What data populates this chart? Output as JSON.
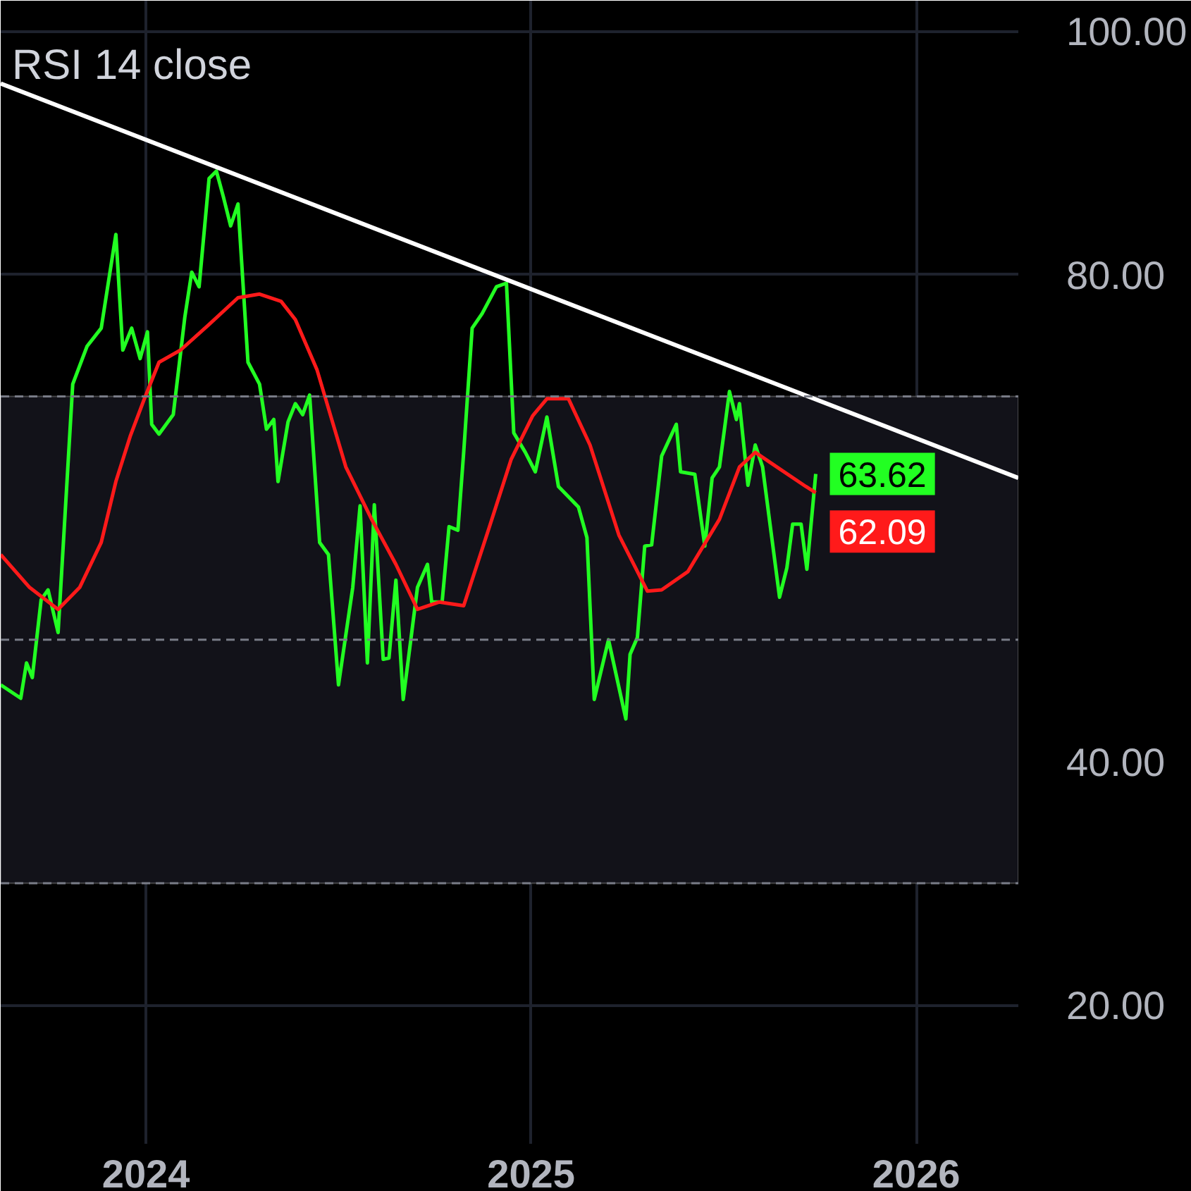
{
  "chart_data": {
    "type": "line",
    "title": "RSI 14 close",
    "xlim": [
      2023.623,
      2026.265
    ],
    "xticks": [
      2024,
      2025,
      2026
    ],
    "ylim": [
      8.6,
      102.5
    ],
    "yticks": [
      {
        "value": 20,
        "label": "20.00"
      },
      {
        "value": 40,
        "label": "40.00"
      },
      {
        "value": 60,
        "label": null
      },
      {
        "value": 80,
        "label": "80.00"
      },
      {
        "value": 100,
        "label": "100.00"
      }
    ],
    "grid": true,
    "bands": [
      {
        "axis": "y",
        "from": 30,
        "to": 70,
        "color": "#121219"
      }
    ],
    "ref_lines": [
      {
        "axis": "y",
        "value": 70,
        "color": "#787b86",
        "line_style": "dashed"
      },
      {
        "axis": "y",
        "value": 50,
        "color": "#787b86",
        "line_style": "dashed"
      },
      {
        "axis": "y",
        "value": 30,
        "color": "#787b86",
        "line_style": "dashed"
      }
    ],
    "series": [
      {
        "type": "line",
        "color": "#22ff22",
        "x": [
          2023.623,
          2023.675,
          2023.69,
          2023.705,
          2023.728,
          2023.746,
          2023.772,
          2023.81,
          2023.847,
          2023.884,
          2023.922,
          2023.94,
          2023.963,
          2023.985,
          2024.004,
          2024.015,
          2024.034,
          2024.071,
          2024.101,
          2024.119,
          2024.138,
          2024.164,
          2024.183,
          2024.201,
          2024.22,
          2024.239,
          2024.265,
          2024.295,
          2024.313,
          2024.332,
          2024.343,
          2024.369,
          2024.388,
          2024.407,
          2024.425,
          2024.451,
          2024.474,
          2024.5,
          2024.537,
          2024.556,
          2024.575,
          2024.593,
          2024.616,
          2024.631,
          2024.649,
          2024.668,
          2024.705,
          2024.731,
          2024.742,
          2024.769,
          2024.787,
          2024.81,
          2024.825,
          2024.847,
          2024.873,
          2024.91,
          2024.936,
          2024.955,
          2024.985,
          2025.011,
          2025.041,
          2025.071,
          2025.123,
          2025.145,
          2025.164,
          2025.201,
          2025.246,
          2025.257,
          2025.276,
          2025.295,
          2025.313,
          2025.339,
          2025.377,
          2025.388,
          2025.425,
          2025.451,
          2025.47,
          2025.489,
          2025.515,
          2025.533,
          2025.541,
          2025.563,
          2025.582,
          2025.601,
          2025.645,
          2025.664,
          2025.679,
          2025.701,
          2025.716,
          2025.739
        ],
        "values": [
          46.3,
          45.2,
          48.1,
          46.9,
          53.3,
          54.1,
          50.6,
          71.0,
          74.1,
          75.6,
          83.3,
          73.8,
          75.6,
          73.1,
          75.3,
          67.7,
          66.9,
          68.5,
          76.5,
          80.2,
          79.0,
          87.9,
          88.5,
          86.4,
          84.0,
          85.8,
          72.8,
          71.0,
          67.3,
          68.1,
          63.0,
          67.9,
          69.4,
          68.5,
          70.1,
          58.0,
          57.0,
          46.3,
          54.3,
          61.0,
          48.1,
          61.1,
          48.4,
          48.5,
          54.9,
          45.1,
          54.3,
          56.2,
          53.1,
          53.1,
          59.3,
          59.0,
          65.4,
          75.6,
          76.8,
          79.0,
          79.3,
          67.0,
          65.4,
          63.8,
          68.3,
          62.6,
          60.9,
          58.4,
          45.1,
          50.0,
          43.5,
          48.8,
          50.2,
          57.7,
          57.8,
          65.1,
          67.7,
          63.8,
          63.6,
          57.7,
          63.3,
          64.2,
          70.4,
          68.1,
          69.4,
          62.7,
          66.0,
          64.2,
          53.5,
          55.9,
          59.5,
          59.5,
          55.8,
          63.62
        ],
        "value_labels": [
          null,
          null,
          null,
          null,
          null,
          null,
          null,
          null,
          null,
          null,
          null,
          null,
          null,
          null,
          null,
          null,
          null,
          null,
          null,
          null,
          null,
          null,
          null,
          null,
          null,
          null,
          null,
          null,
          null,
          null,
          null,
          null,
          null,
          null,
          null,
          null,
          null,
          null,
          null,
          null,
          null,
          null,
          null,
          null,
          null,
          null,
          null,
          null,
          null,
          null,
          null,
          null,
          null,
          null,
          null,
          null,
          null,
          null,
          null,
          null,
          null,
          null,
          null,
          null,
          null,
          null,
          null,
          null,
          null,
          null,
          null,
          null,
          null,
          null,
          null,
          null,
          null,
          null,
          null,
          null,
          null,
          null,
          null,
          null,
          null,
          null,
          null,
          null,
          null,
          "63.62"
        ]
      },
      {
        "type": "line",
        "color": "#ff1a1a",
        "x": [
          2023.623,
          2023.698,
          2023.772,
          2023.828,
          2023.884,
          2023.922,
          2023.959,
          2023.996,
          2024.034,
          2024.09,
          2024.164,
          2024.239,
          2024.295,
          2024.351,
          2024.388,
          2024.444,
          2024.519,
          2024.586,
          2024.649,
          2024.705,
          2024.761,
          2024.825,
          2024.892,
          2024.948,
          2025.004,
          2025.041,
          2025.097,
          2025.153,
          2025.228,
          2025.302,
          2025.339,
          2025.407,
          2025.489,
          2025.541,
          2025.582,
          2025.638,
          2025.713,
          2025.739
        ],
        "values": [
          57.0,
          54.3,
          52.5,
          54.3,
          58.0,
          63.0,
          66.7,
          69.8,
          72.8,
          73.8,
          75.9,
          78.1,
          78.4,
          77.8,
          76.3,
          72.2,
          64.2,
          59.9,
          56.2,
          52.5,
          53.1,
          52.8,
          59.3,
          64.8,
          68.4,
          69.8,
          69.8,
          66.0,
          58.6,
          54.0,
          54.1,
          55.6,
          59.9,
          64.2,
          65.4,
          64.2,
          62.6,
          62.09
        ],
        "value_labels": [
          null,
          null,
          null,
          null,
          null,
          null,
          null,
          null,
          null,
          null,
          null,
          null,
          null,
          null,
          null,
          null,
          null,
          null,
          null,
          null,
          null,
          null,
          null,
          null,
          null,
          null,
          null,
          null,
          null,
          null,
          null,
          null,
          null,
          null,
          null,
          null,
          null,
          "62.09"
        ]
      },
      {
        "type": "line",
        "color": "#ffffff",
        "x": [
          2023.623,
          2026.265
        ],
        "values": [
          95.7,
          63.3
        ]
      }
    ]
  }
}
